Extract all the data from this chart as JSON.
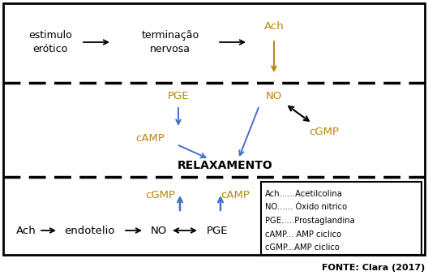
{
  "fonte": "FONTE: Clara (2017)",
  "background": "#ffffff",
  "orange_color": "#b8860b",
  "blue_color": "#4472c4",
  "black_color": "#000000",
  "legend_items": [
    "Ach......Acetilcolina",
    "NO...... Óxido nitrico",
    "PGE.....Prostaglandina",
    "cAMP... AMP ciclico",
    "cGMP...AMP ciclico"
  ],
  "s1_left": "estimulo\nerótico",
  "s1_mid": "terminação\nnervosa",
  "s1_right": "Ach",
  "s2_pge": "PGE",
  "s2_camp": "cAMP",
  "s2_no": "NO",
  "s2_cgmp": "cGMP",
  "s2_relax": "RELAXAMENTO",
  "s3_cgmp": "cGMP",
  "s3_camp": "cAMP",
  "s3_ach": "Ach",
  "s3_endo": "endotelio",
  "s3_no": "NO",
  "s3_pge": "PGE"
}
